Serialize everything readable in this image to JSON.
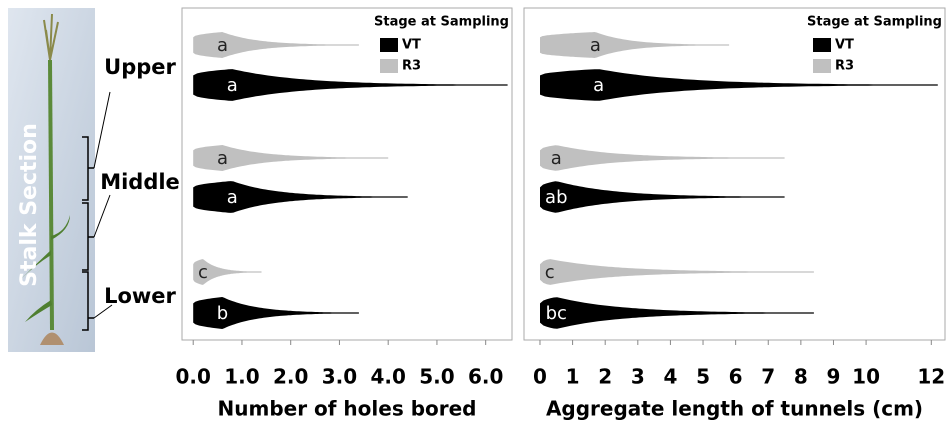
{
  "stalk_section_label": "Stalk Section",
  "sections": [
    "Upper",
    "Middle",
    "Lower"
  ],
  "chart_data": [
    {
      "type": "violin",
      "x_label": "Number of holes bored",
      "legend_title": "Stage at Sampling",
      "xlim": [
        -0.23,
        6.54
      ],
      "xticks": [
        {
          "value": 0,
          "label": "0.0"
        },
        {
          "value": 1,
          "label": "1.0"
        },
        {
          "value": 2,
          "label": "2.0"
        },
        {
          "value": 3,
          "label": "3.0"
        },
        {
          "value": 4,
          "label": "4.0"
        },
        {
          "value": 5,
          "label": "5.0"
        },
        {
          "value": 6,
          "label": "6.0"
        }
      ],
      "series": [
        {
          "name": "VT",
          "color": "#000000",
          "min": [
            0,
            0,
            0
          ],
          "mode": [
            0.8,
            0.8,
            0.6
          ],
          "max": [
            6.45,
            4.4,
            3.4
          ],
          "letters": [
            "a",
            "a",
            "b"
          ]
        },
        {
          "name": "R3",
          "color": "#c0c0c0",
          "min": [
            0,
            0,
            0
          ],
          "mode": [
            0.6,
            0.6,
            0.2
          ],
          "max": [
            3.4,
            4.0,
            1.4
          ],
          "letters": [
            "a",
            "a",
            "c"
          ]
        }
      ]
    },
    {
      "type": "violin",
      "x_label": "Aggregate length of tunnels (cm)",
      "legend_title": "Stage at Sampling",
      "xlim": [
        -0.49,
        12.42
      ],
      "xticks": [
        0,
        1,
        2,
        3,
        4,
        5,
        6,
        7,
        8,
        9,
        10,
        12
      ],
      "series": [
        {
          "name": "VT",
          "color": "#000000",
          "min": [
            0,
            0,
            0
          ],
          "mode": [
            1.8,
            0.5,
            0.5
          ],
          "max": [
            12.2,
            7.5,
            8.4
          ],
          "letters": [
            "a",
            "ab",
            "bc"
          ]
        },
        {
          "name": "R3",
          "color": "#c0c0c0",
          "min": [
            0,
            0,
            0
          ],
          "mode": [
            1.7,
            0.5,
            0.3
          ],
          "max": [
            5.8,
            7.5,
            8.4
          ],
          "letters": [
            "a",
            "a",
            "c"
          ]
        }
      ]
    }
  ]
}
